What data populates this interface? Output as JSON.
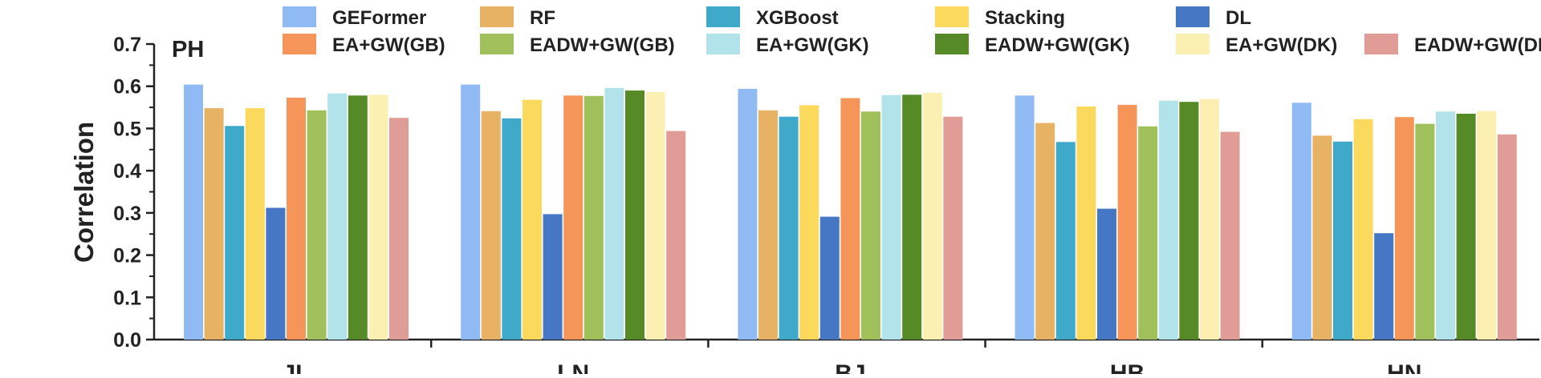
{
  "chart_data": {
    "type": "bar",
    "title": "PH",
    "xlabel": "",
    "ylabel": "Correlation",
    "ylim": [
      0,
      0.7
    ],
    "yticks": [
      "0.0",
      "0.1",
      "0.2",
      "0.3",
      "0.4",
      "0.5",
      "0.6",
      "0.7"
    ],
    "categories": [
      "JL",
      "LN",
      "BJ",
      "HB",
      "HN"
    ],
    "legend_position": "top",
    "series": [
      {
        "name": "GEFormer",
        "color": "#8fbaf3",
        "values": [
          0.604,
          0.604,
          0.594,
          0.578,
          0.561
        ]
      },
      {
        "name": "RF",
        "color": "#e7b264",
        "values": [
          0.548,
          0.541,
          0.543,
          0.513,
          0.483
        ]
      },
      {
        "name": "XGBoost",
        "color": "#3ea9c8",
        "values": [
          0.506,
          0.524,
          0.528,
          0.468,
          0.469
        ]
      },
      {
        "name": "Stacking",
        "color": "#fbd95d",
        "values": [
          0.548,
          0.568,
          0.555,
          0.552,
          0.522
        ]
      },
      {
        "name": "DL",
        "color": "#4677c4",
        "values": [
          0.312,
          0.297,
          0.291,
          0.31,
          0.252
        ]
      },
      {
        "name": "EA+GW(GB)",
        "color": "#f6955a",
        "values": [
          0.573,
          0.578,
          0.572,
          0.556,
          0.527
        ]
      },
      {
        "name": "EADW+GW(GB)",
        "color": "#9fc05a",
        "values": [
          0.543,
          0.577,
          0.54,
          0.505,
          0.511
        ]
      },
      {
        "name": "EA+GW(GK)",
        "color": "#b3e3ea",
        "values": [
          0.583,
          0.596,
          0.579,
          0.566,
          0.54
        ]
      },
      {
        "name": "EADW+GW(GK)",
        "color": "#568a26",
        "values": [
          0.578,
          0.59,
          0.58,
          0.563,
          0.535
        ]
      },
      {
        "name": "EA+GW(DK)",
        "color": "#fcefb2",
        "values": [
          0.58,
          0.586,
          0.584,
          0.57,
          0.541
        ]
      },
      {
        "name": "EADW+GW(DK)",
        "color": "#e09c97",
        "values": [
          0.525,
          0.494,
          0.528,
          0.492,
          0.486
        ]
      }
    ]
  }
}
